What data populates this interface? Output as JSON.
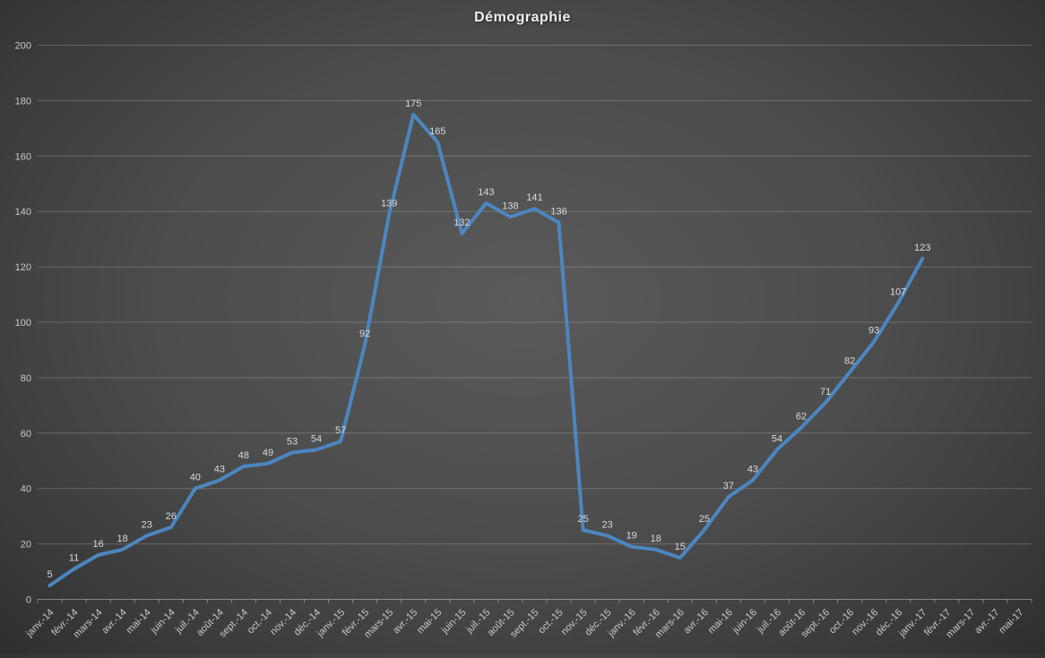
{
  "title": "Démographie",
  "chart_data": {
    "type": "line",
    "title": "Démographie",
    "categories": [
      "janv.-14",
      "févr.-14",
      "mars-14",
      "avr.-14",
      "mai-14",
      "juin-14",
      "juil.-14",
      "août-14",
      "sept.-14",
      "oct.-14",
      "nov.-14",
      "déc.-14",
      "janv.-15",
      "févr.-15",
      "mars-15",
      "avr.-15",
      "mai-15",
      "juin-15",
      "juil.-15",
      "août-15",
      "sept.-15",
      "oct.-15",
      "nov.-15",
      "déc.-15",
      "janv.-16",
      "févr.-16",
      "mars-16",
      "avr.-16",
      "mai-16",
      "juin-16",
      "juil.-16",
      "août-16",
      "sept.-16",
      "oct.-16",
      "nov.-16",
      "déc.-16",
      "janv.-17",
      "févr.-17",
      "mars-17",
      "avr.-17",
      "mai-17"
    ],
    "series": [
      {
        "name": "Démographie",
        "values": [
          5,
          11,
          16,
          18,
          23,
          26,
          40,
          43,
          48,
          49,
          53,
          54,
          57,
          92,
          139,
          175,
          165,
          132,
          143,
          138,
          141,
          136,
          25,
          23,
          19,
          18,
          15,
          25,
          37,
          43,
          54,
          62,
          71,
          82,
          93,
          107,
          123,
          null,
          null,
          null,
          null
        ]
      }
    ],
    "ylim": [
      0,
      200
    ],
    "ytick_step": 20,
    "grid": true,
    "legend": "none",
    "data_labels": true,
    "colors": {
      "line": "#4C86C0",
      "data_label": "#dadada",
      "axis_label": "#c9c9c9",
      "gridline": "rgba(255,255,255,0.20)",
      "axis_line": "rgba(255,255,255,0.38)",
      "title": "#eeeeee"
    }
  }
}
